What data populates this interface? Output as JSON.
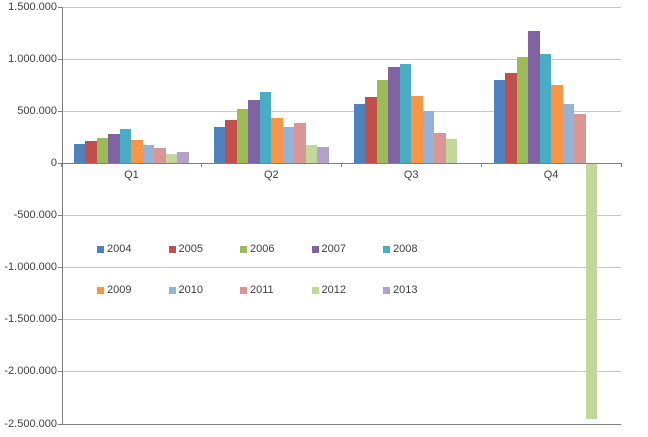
{
  "chart": {
    "background": "#FFFFFF",
    "text_color": "#3F3F3F",
    "gridline_color": "#C8C8C8",
    "axis_line_color": "#808080"
  },
  "chart_data": {
    "type": "bar",
    "title": "",
    "xlabel": "",
    "ylabel": "",
    "categories": [
      "Q1",
      "Q2",
      "Q3",
      "Q4"
    ],
    "series": [
      {
        "name": "2004",
        "color": "#4F81BD",
        "values": [
          190000,
          350000,
          570000,
          800000
        ]
      },
      {
        "name": "2005",
        "color": "#C0504D",
        "values": [
          215000,
          415000,
          640000,
          870000
        ]
      },
      {
        "name": "2006",
        "color": "#9BBB59",
        "values": [
          245000,
          520000,
          800000,
          1020000
        ]
      },
      {
        "name": "2007",
        "color": "#8064A2",
        "values": [
          285000,
          610000,
          920000,
          1265000
        ]
      },
      {
        "name": "2008",
        "color": "#4BACC6",
        "values": [
          325000,
          680000,
          950000,
          1050000
        ]
      },
      {
        "name": "2009",
        "color": "#F79646",
        "values": [
          225000,
          435000,
          650000,
          755000
        ]
      },
      {
        "name": "2010",
        "color": "#95B3D7",
        "values": [
          180000,
          345000,
          505000,
          570000
        ]
      },
      {
        "name": "2011",
        "color": "#D99694",
        "values": [
          150000,
          390000,
          290000,
          470000
        ]
      },
      {
        "name": "2012",
        "color": "#C3D69B",
        "values": [
          90000,
          175000,
          235000,
          -2450000
        ]
      },
      {
        "name": "2013",
        "color": "#B3A2C7",
        "values": [
          105000,
          155000,
          null,
          null
        ]
      }
    ],
    "y_ticks": [
      {
        "label": "1.500.000",
        "value": 1500000
      },
      {
        "label": "1.000.000",
        "value": 1000000
      },
      {
        "label": "500.000",
        "value": 500000
      },
      {
        "label": "0",
        "value": 0
      },
      {
        "label": "-500.000",
        "value": -500000
      },
      {
        "label": "-1.000.000",
        "value": -1000000
      },
      {
        "label": "-1.500.000",
        "value": -1500000
      },
      {
        "label": "-2.000.000",
        "value": -2000000
      },
      {
        "label": "-2.500.000",
        "value": -2500000
      }
    ],
    "ylim": [
      -2500000,
      1500000
    ],
    "grid": true,
    "legend_position": "inside-plot-two-rows",
    "legend_rows": [
      [
        "2004",
        "2005",
        "2006",
        "2007",
        "2008"
      ],
      [
        "2009",
        "2010",
        "2011",
        "2012",
        "2013"
      ]
    ]
  }
}
